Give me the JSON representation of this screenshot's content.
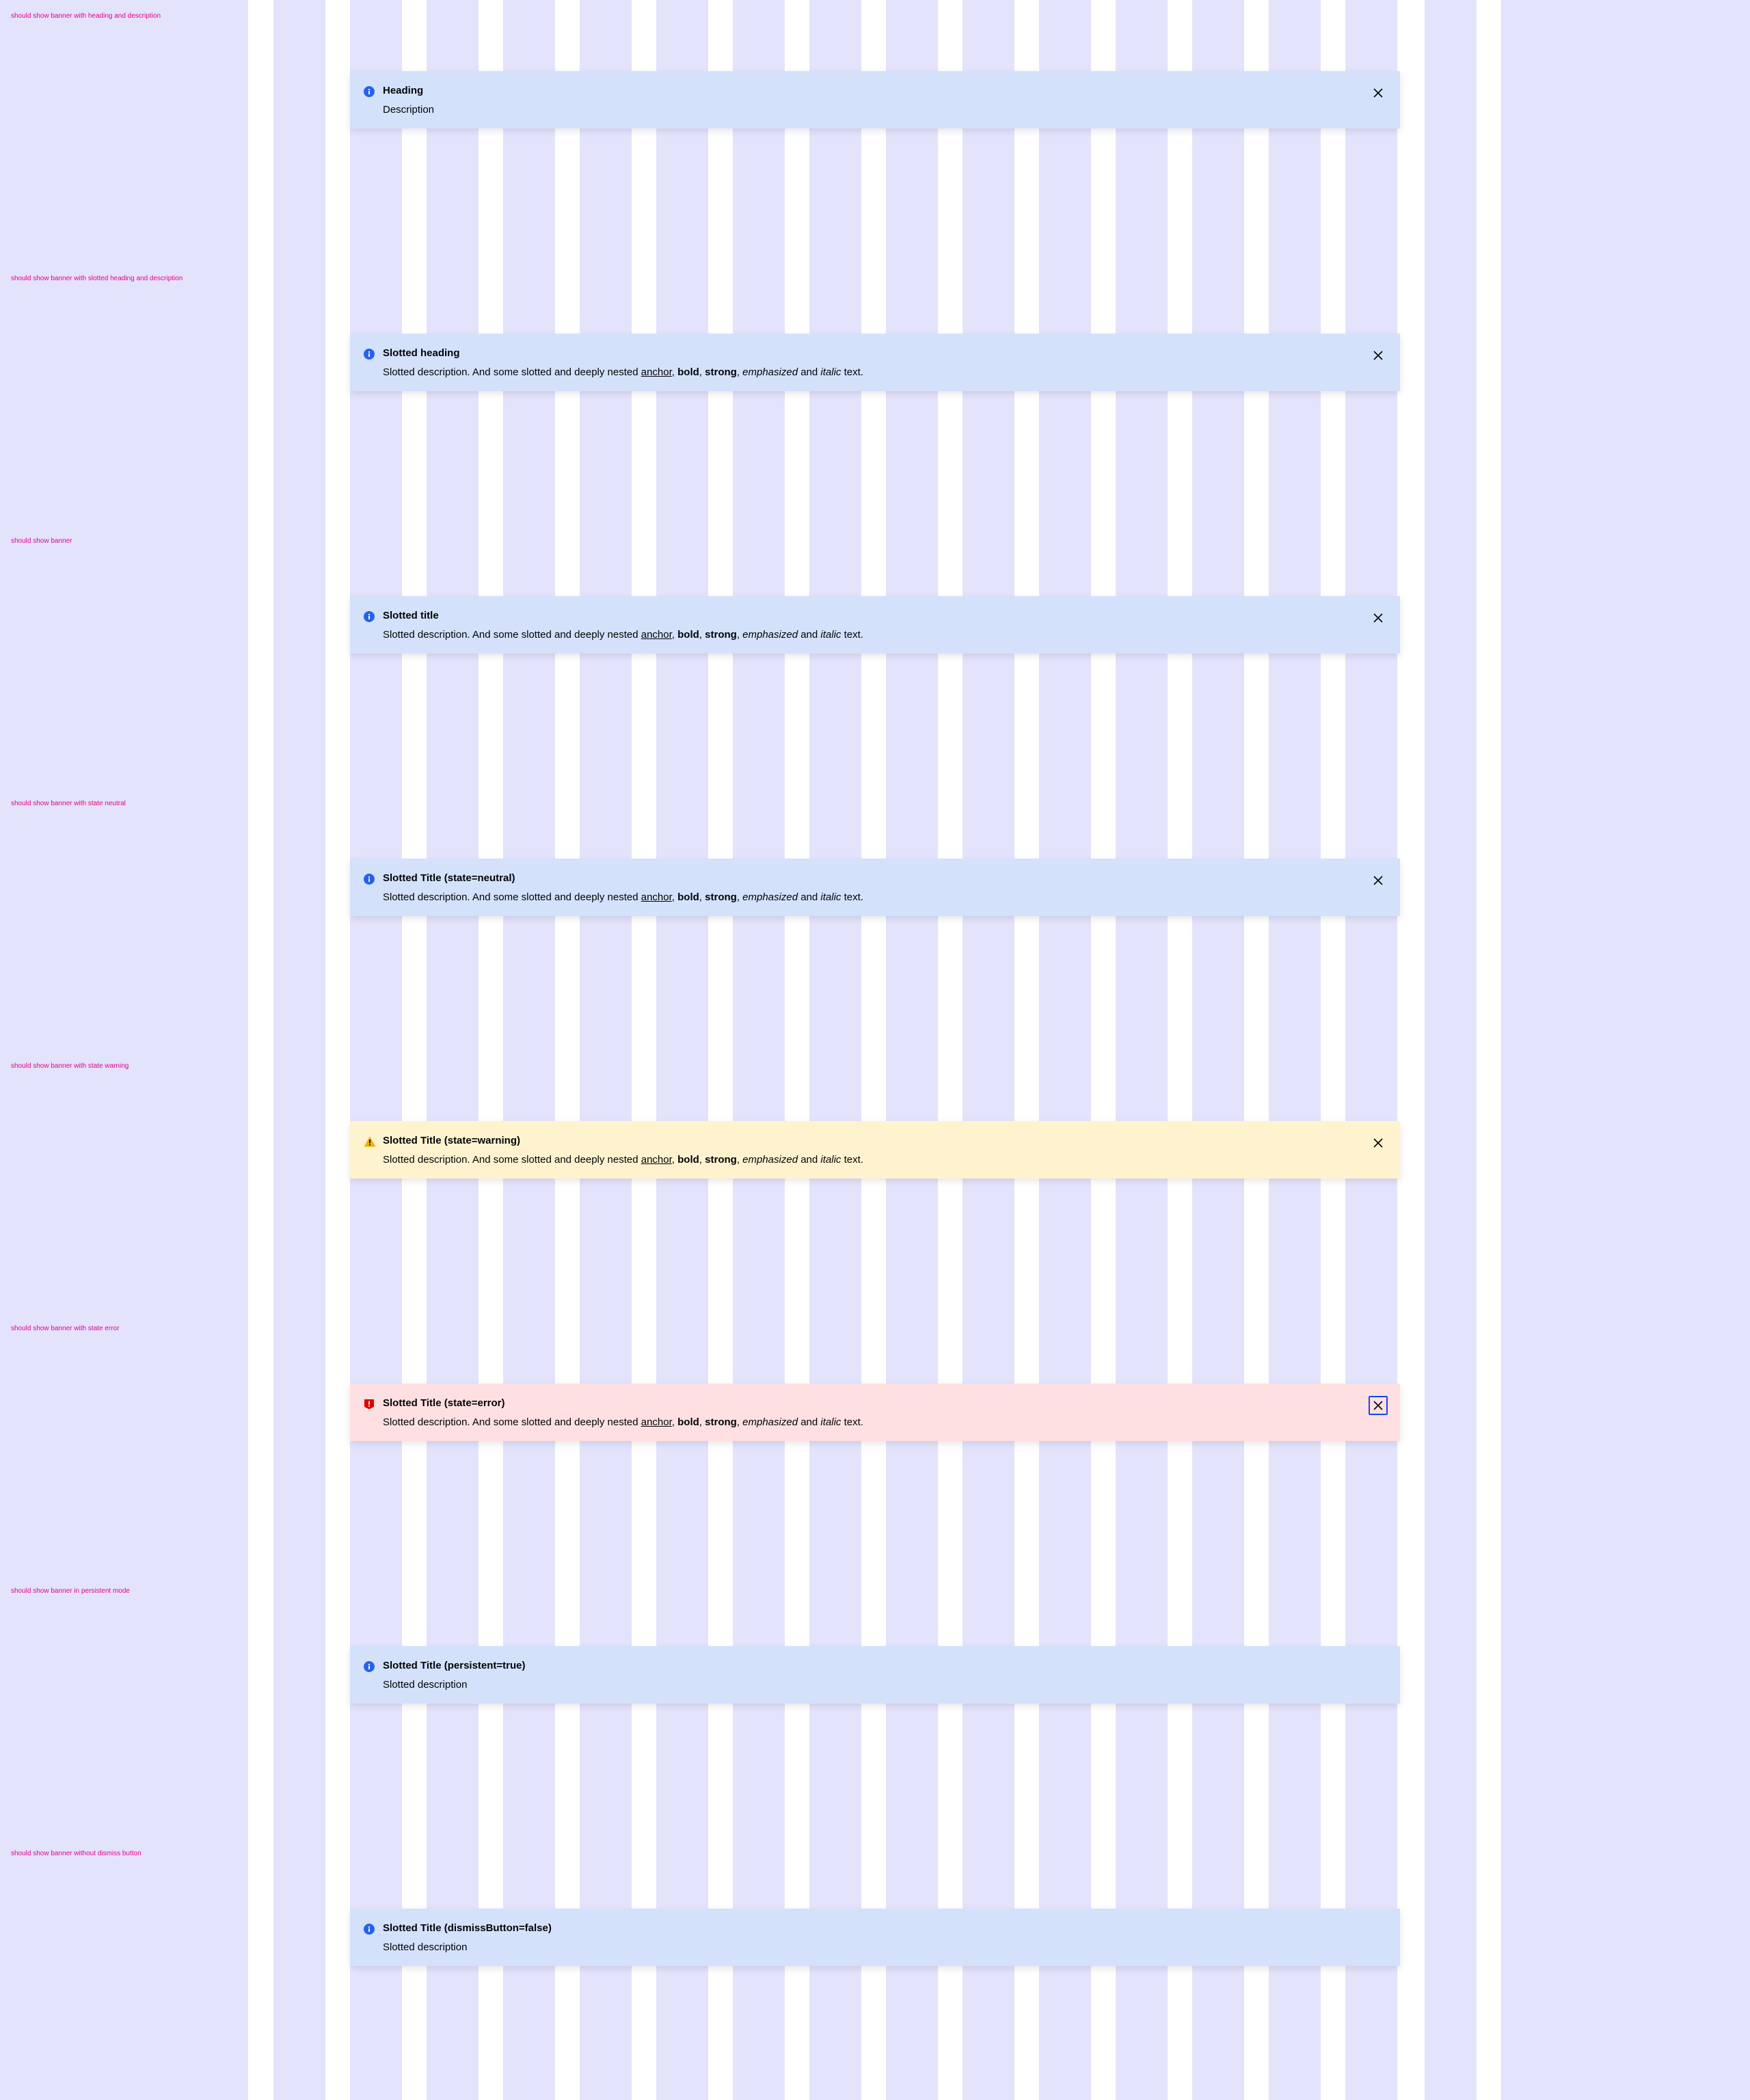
{
  "colors": {
    "grid_column": "#e3e3fc",
    "label_text": "#e6008c",
    "banner_info": "#d4e1fb",
    "banner_warning": "#fff3cf",
    "banner_error": "#ffe0e2",
    "icon_info": "#2762ec",
    "icon_warning": "#f2b300",
    "icon_error": "#e00000",
    "focus_ring": "#1a44ea"
  },
  "cases": [
    {
      "label": "should show banner with heading and description",
      "state": "info",
      "title": "Heading",
      "description_plain": "Description",
      "icon": "info-icon",
      "dismissible": true
    },
    {
      "label": "should show banner with slotted heading and description",
      "state": "info",
      "title": "Slotted heading",
      "icon": "info-icon",
      "dismissible": true,
      "description": {
        "lead": "Slotted description. And some slotted and deeply nested ",
        "anchor": "anchor",
        "bold": "bold",
        "strong": "strong",
        "emphasized": "emphasized",
        "and": "and",
        "italic": "italic",
        "tail": "text."
      }
    },
    {
      "label": "should show banner",
      "state": "info",
      "title": "Slotted title",
      "icon": "info-icon",
      "dismissible": true,
      "description": {
        "lead": "Slotted description. And some slotted and deeply nested ",
        "anchor": "anchor",
        "bold": "bold",
        "strong": "strong",
        "emphasized": "emphasized",
        "and": "and",
        "italic": "italic",
        "tail": "text."
      }
    },
    {
      "label": "should show banner with state neutral",
      "state": "info",
      "title": "Slotted Title (state=neutral)",
      "icon": "info-icon",
      "dismissible": true,
      "description": {
        "lead": "Slotted description. And some slotted and deeply nested ",
        "anchor": "anchor",
        "bold": "bold",
        "strong": "strong",
        "emphasized": "emphasized",
        "and": "and",
        "italic": "italic",
        "tail": "text."
      }
    },
    {
      "label": "should show banner with state warning",
      "state": "warning",
      "title": "Slotted Title (state=warning)",
      "icon": "warning-icon",
      "dismissible": true,
      "description": {
        "lead": "Slotted description. And some slotted and deeply nested ",
        "anchor": "anchor",
        "bold": "bold",
        "strong": "strong",
        "emphasized": "emphasized",
        "and": "and",
        "italic": "italic",
        "tail": "text."
      }
    },
    {
      "label": "should show banner with state error",
      "state": "error",
      "title": "Slotted Title (state=error)",
      "icon": "error-icon",
      "dismissible": true,
      "close_focused": true,
      "description": {
        "lead": "Slotted description. And some slotted and deeply nested ",
        "anchor": "anchor",
        "bold": "bold",
        "strong": "strong",
        "emphasized": "emphasized",
        "and": "and",
        "italic": "italic",
        "tail": "text."
      }
    },
    {
      "label": "should show banner in persistent mode",
      "state": "info",
      "title": "Slotted Title (persistent=true)",
      "description_plain": "Slotted description",
      "icon": "info-icon",
      "dismissible": false
    },
    {
      "label": "should show banner without dismiss button",
      "state": "info",
      "title": "Slotted Title (dismissButton=false)",
      "description_plain": "Slotted description",
      "icon": "info-icon",
      "dismissible": false
    }
  ]
}
